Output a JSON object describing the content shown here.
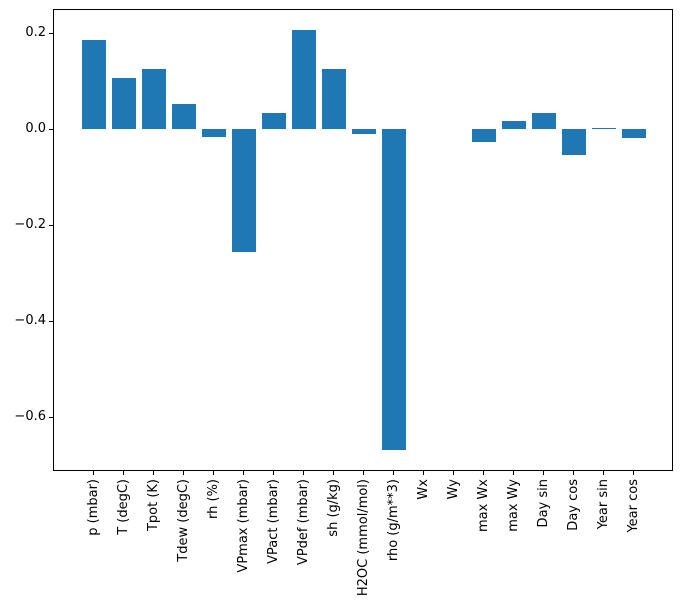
{
  "chart_data": {
    "type": "bar",
    "title": "",
    "xlabel": "",
    "ylabel": "",
    "categories": [
      "p (mbar)",
      "T (degC)",
      "Tpot (K)",
      "Tdew (degC)",
      "rh (%)",
      "VPmax (mbar)",
      "VPact (mbar)",
      "VPdef (mbar)",
      "sh (g/kg)",
      "H2OC (mmol/mol)",
      "rho (g/m**3)",
      "Wx",
      "Wy",
      "max Wx",
      "max Wy",
      "Day sin",
      "Day cos",
      "Year sin",
      "Year cos"
    ],
    "values": [
      0.187,
      0.108,
      0.126,
      0.053,
      -0.015,
      -0.256,
      0.035,
      0.207,
      0.127,
      -0.01,
      -0.668,
      0.0,
      0.0,
      -0.027,
      0.018,
      0.034,
      -0.054,
      0.002,
      -0.018
    ],
    "ylim": [
      -0.7115,
      0.251
    ],
    "yticks": [
      0.2,
      0.0,
      -0.2,
      -0.4,
      -0.6
    ],
    "ytick_labels": [
      "0.2",
      "0.0",
      "−0.2",
      "−0.4",
      "−0.6"
    ],
    "x_tick_rotation": 90,
    "grid": false,
    "legend": null,
    "bar_color": "#1f77b4",
    "axis_color": "#000000",
    "background_color": "#ffffff"
  }
}
